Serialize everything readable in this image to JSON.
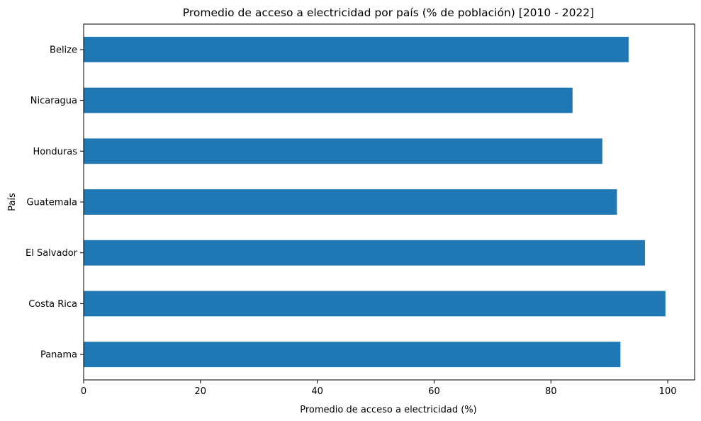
{
  "chart_data": {
    "type": "bar",
    "orientation": "horizontal",
    "title": "Promedio de acceso a electricidad por país (% de población) [2010 - 2022]",
    "xlabel": "Promedio de acceso a electricidad (%)",
    "ylabel": "País",
    "categories": [
      "Panama",
      "Costa Rica",
      "El Salvador",
      "Guatemala",
      "Honduras",
      "Nicaragua",
      "Belize"
    ],
    "values": [
      91.9,
      99.6,
      96.1,
      91.3,
      88.8,
      83.7,
      93.3
    ],
    "xlim": [
      0,
      104.6
    ],
    "xticks": [
      0,
      20,
      40,
      60,
      80,
      100
    ],
    "grid": false,
    "colors": {
      "bar": "#1f77b4",
      "axis": "#000000"
    }
  }
}
